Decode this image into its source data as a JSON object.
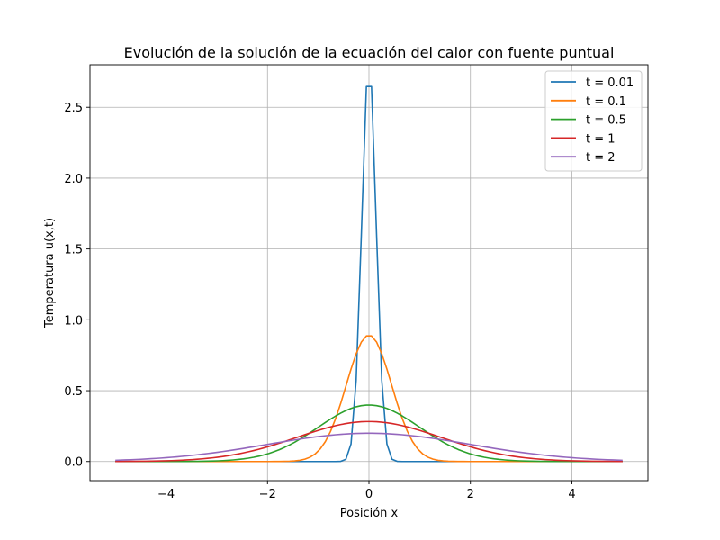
{
  "chart_data": {
    "type": "line",
    "title": "Evolución de la solución de la ecuación del calor con fuente puntual",
    "xlabel": "Posición x",
    "ylabel": "Temperatura u(x,t)",
    "xlim": [
      -5.5,
      5.5
    ],
    "ylim": [
      -0.135,
      2.8
    ],
    "xticks": [
      -4,
      -2,
      0,
      2,
      4
    ],
    "xtick_labels": [
      "−4",
      "−2",
      "0",
      "2",
      "4"
    ],
    "yticks": [
      0.0,
      0.5,
      1.0,
      1.5,
      2.0,
      2.5
    ],
    "ytick_labels": [
      "0.0",
      "0.5",
      "1.0",
      "1.5",
      "2.0",
      "2.5"
    ],
    "grid": true,
    "legend_position": "top-right",
    "x": {
      "start": -5,
      "stop": 5,
      "count": 100
    },
    "series": [
      {
        "name": "t = 0.01",
        "t": 0.01,
        "color": "#1f77b4",
        "formula": "exp(-x^2/(4t))/sqrt(4*pi*t)"
      },
      {
        "name": "t = 0.1",
        "t": 0.1,
        "color": "#ff7f0e",
        "formula": "exp(-x^2/(4t))/sqrt(4*pi*t)"
      },
      {
        "name": "t = 0.5",
        "t": 0.5,
        "color": "#2ca02c",
        "formula": "exp(-x^2/(4t))/sqrt(4*pi*t)"
      },
      {
        "name": "t = 1",
        "t": 1,
        "color": "#d62728",
        "formula": "exp(-x^2/(4t))/sqrt(4*pi*t)"
      },
      {
        "name": "t = 2",
        "t": 2,
        "color": "#9467bd",
        "formula": "exp(-x^2/(4t))/sqrt(4*pi*t)"
      }
    ]
  }
}
